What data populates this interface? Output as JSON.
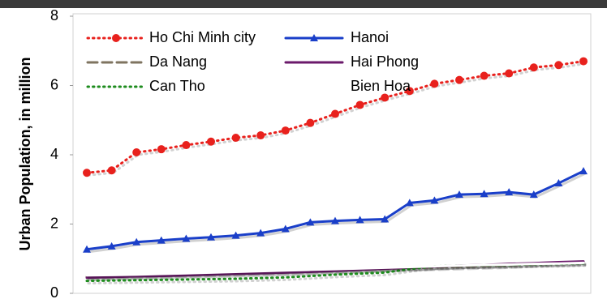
{
  "chart_data": {
    "type": "line",
    "ylabel": "Urban Population, in million",
    "categories": [
      null,
      null,
      null,
      null,
      null,
      null,
      null,
      null,
      null,
      null,
      null,
      null,
      null,
      null,
      null,
      null,
      null,
      null,
      null,
      null,
      null
    ],
    "ylim": [
      0,
      8
    ],
    "yticks": [
      0,
      2,
      4,
      6,
      8
    ],
    "series": [
      {
        "name": "Ho Chi Minh city",
        "color": "#e8211d",
        "style": "dotted",
        "marker": "circle",
        "values": [
          3.48,
          3.55,
          4.07,
          4.16,
          4.28,
          4.38,
          4.49,
          4.56,
          4.7,
          4.92,
          5.18,
          5.44,
          5.65,
          5.84,
          6.05,
          6.16,
          6.28,
          6.35,
          6.52,
          6.59,
          6.7
        ]
      },
      {
        "name": "Hanoi",
        "color": "#1a3fc9",
        "style": "solid",
        "marker": "triangle",
        "values": [
          1.27,
          1.36,
          1.48,
          1.53,
          1.58,
          1.62,
          1.67,
          1.74,
          1.86,
          2.05,
          2.09,
          2.12,
          2.14,
          2.61,
          2.68,
          2.85,
          2.87,
          2.92,
          2.85,
          3.18,
          3.53
        ]
      },
      {
        "name": "Da Nang",
        "color": "#7f7460",
        "style": "dashed",
        "marker": "none",
        "values": [
          0.48,
          0.5,
          0.51,
          0.53,
          0.55,
          0.57,
          0.59,
          0.61,
          0.63,
          0.65,
          0.67,
          0.69,
          0.71,
          0.73,
          0.75,
          0.77,
          0.79,
          0.81,
          0.84,
          0.87,
          0.9
        ]
      },
      {
        "name": "Hai Phong",
        "color": "#6b1a6b",
        "style": "solid",
        "marker": "none",
        "values": [
          0.45,
          0.47,
          0.49,
          0.5,
          0.52,
          0.54,
          0.56,
          0.58,
          0.6,
          0.62,
          0.65,
          0.68,
          0.71,
          0.74,
          0.77,
          0.8,
          0.82,
          0.85,
          0.87,
          0.9,
          0.92
        ]
      },
      {
        "name": "Can Tho",
        "color": "#1e8c1e",
        "style": "dotted",
        "marker": "none",
        "values": [
          0.36,
          0.37,
          0.38,
          0.39,
          0.4,
          0.41,
          0.42,
          0.44,
          0.46,
          0.5,
          0.54,
          0.57,
          0.6,
          0.7,
          0.78,
          0.8,
          0.81,
          0.82,
          0.84,
          0.85,
          0.87
        ]
      },
      {
        "name": "Bien Hoa",
        "color": "#ffffff",
        "style": "solid",
        "marker": "none",
        "values": [
          0.52,
          0.53,
          0.54,
          0.56,
          0.58,
          0.6,
          0.62,
          0.64,
          0.66,
          0.68,
          0.7,
          0.72,
          0.74,
          0.76,
          0.78,
          0.8,
          0.82,
          0.83,
          0.85,
          0.86,
          0.88
        ]
      }
    ]
  }
}
